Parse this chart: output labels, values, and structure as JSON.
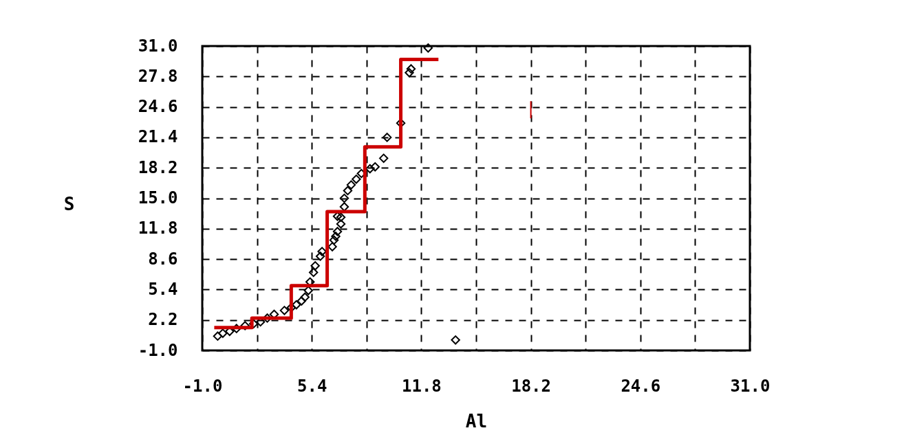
{
  "chart_data": {
    "type": "scatter",
    "xlabel": "Al",
    "ylabel": "S",
    "xlim": [
      -1,
      31
    ],
    "ylim": [
      -1,
      31
    ],
    "xticks": [
      {
        "value": -1,
        "label": "-1.0"
      },
      {
        "value": 2.2,
        "label": null
      },
      5.4,
      {
        "value": 8.6,
        "label": null
      },
      11.8,
      {
        "value": 15,
        "label": null
      },
      18.2,
      {
        "value": 21.4,
        "label": null
      },
      24.6,
      {
        "value": 27.8,
        "label": null
      },
      {
        "value": 31,
        "label": "31.0"
      }
    ],
    "yticks": [
      {
        "value": -1,
        "label": "-1.0"
      },
      2.2,
      5.4,
      8.6,
      11.8,
      {
        "value": 15,
        "label": "15.0"
      },
      18.2,
      21.4,
      24.6,
      27.8,
      {
        "value": 31,
        "label": "31.0"
      }
    ],
    "grid": true,
    "series": [
      {
        "color": "#000000",
        "marker": "diamond",
        "x": [
          -0.1,
          0.2,
          0.6,
          1.0,
          1.5,
          2.0,
          2.4,
          2.8,
          3.2,
          3.8,
          4.2,
          4.5,
          4.8,
          5.0,
          5.2,
          5.3,
          5.5,
          5.6,
          5.9,
          6.0,
          6.6,
          6.7,
          6.8,
          6.9,
          6.9,
          7.1,
          7.1,
          7.3,
          7.3,
          7.5,
          7.7,
          8.0,
          8.3,
          8.8,
          9.1,
          9.6,
          9.8,
          10.6,
          11.1,
          11.2,
          12.2,
          13.8
        ],
        "values": [
          0.5,
          0.8,
          1.0,
          1.3,
          1.6,
          1.8,
          2.0,
          2.4,
          2.8,
          3.2,
          3.5,
          3.8,
          4.2,
          4.6,
          5.3,
          6.2,
          7.2,
          7.9,
          8.9,
          9.4,
          9.9,
          10.6,
          11.0,
          11.5,
          13.1,
          12.3,
          13.0,
          14.1,
          15.0,
          15.8,
          16.4,
          17.0,
          17.6,
          18.1,
          18.3,
          19.2,
          21.4,
          22.9,
          28.2,
          28.6,
          30.8,
          0.1
        ]
      },
      {
        "type": "step",
        "color": "#cc0000",
        "x": [
          -0.3,
          1.9,
          4.2,
          6.3,
          8.5,
          10.6,
          12.8
        ],
        "values": [
          1.4,
          2.4,
          5.8,
          13.6,
          20.4,
          29.6,
          29.6
        ]
      },
      {
        "type": "line",
        "color": "#cc0000",
        "x": [
          18.2,
          18.2
        ],
        "values": [
          25.2,
          23.4
        ]
      }
    ]
  }
}
